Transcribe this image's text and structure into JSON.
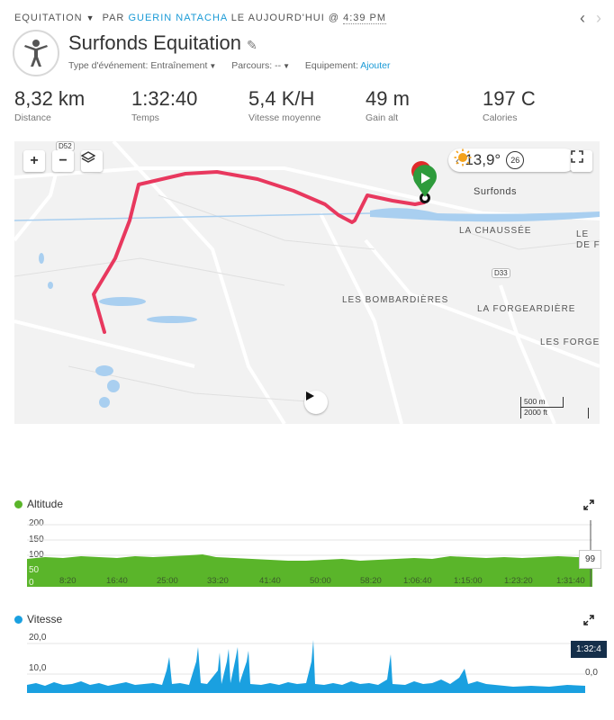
{
  "header": {
    "activity_type": "EQUITATION",
    "by_label": "PAR",
    "user": "GUERIN NATACHA",
    "date_prefix": "LE AUJOURD'HUI @",
    "time": "4:39 PM",
    "title": "Surfonds Equitation",
    "event_type_label": "Type d'événement:",
    "event_type_value": "Entraînement",
    "course_label": "Parcours:",
    "course_value": "--",
    "equipment_label": "Equipement:",
    "equipment_link": "Ajouter"
  },
  "stats": [
    {
      "value": "8,32 km",
      "label": "Distance"
    },
    {
      "value": "1:32:40",
      "label": "Temps"
    },
    {
      "value": "5,4 K/H",
      "label": "Vitesse moyenne"
    },
    {
      "value": "49 m",
      "label": "Gain alt"
    },
    {
      "value": "197 C",
      "label": "Calories"
    }
  ],
  "map": {
    "zoom_in": "+",
    "zoom_out": "−",
    "temperature": "13,9°",
    "wind": "26",
    "road_d52": "D52",
    "road_d33": "D33",
    "places": {
      "surfonds": "Surfonds",
      "chaussee": "LA CHAUSSÉE",
      "bombardieres": "LES BOMBARDIÈRES",
      "forgeardiere": "LA FORGEARDIÈRE",
      "forges": "LES FORGES",
      "edge": "LE",
      "edge2": "DE F"
    },
    "scale_m": "500 m",
    "scale_ft": "2000 ft"
  },
  "altitude": {
    "title": "Altitude",
    "color": "#5ab52a",
    "y_labels": [
      "200",
      "150",
      "100",
      "50",
      "0"
    ],
    "x_ticks": [
      "8:20",
      "16:40",
      "25:00",
      "33:20",
      "41:40",
      "50:00",
      "58:20",
      "1:06:40",
      "1:15:00",
      "1:23:20",
      "1:31:40"
    ],
    "tooltip": "99"
  },
  "speed": {
    "title": "Vitesse",
    "color": "#1aa0e0",
    "y_labels": [
      "20,0",
      "10,0"
    ],
    "tooltip_time": "1:32:4",
    "tooltip_value": "0,0"
  }
}
